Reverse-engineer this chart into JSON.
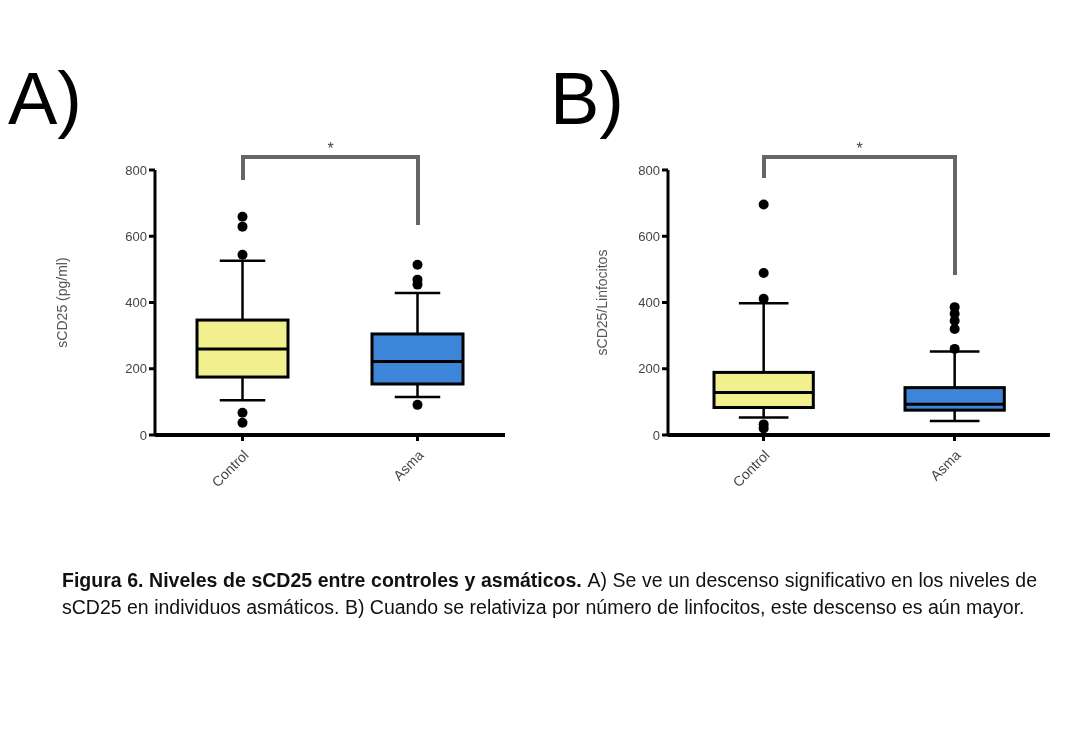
{
  "chart_data": [
    {
      "type": "box",
      "title": "A)",
      "ylabel": "sCD25 (pg/ml)",
      "categories": [
        "Control",
        "Asma"
      ],
      "colors": [
        "#f2f08e",
        "#3d85d8"
      ],
      "ylim": [
        0,
        800
      ],
      "yticks": [
        0,
        200,
        400,
        600,
        800
      ],
      "annotations": [
        "*"
      ],
      "boxes": [
        {
          "low": 105,
          "q1": 175,
          "median": 260,
          "q3": 347,
          "high": 526,
          "outliers": [
            659,
            629,
            544,
            67,
            37
          ]
        },
        {
          "low": 115,
          "q1": 154,
          "median": 222,
          "q3": 305,
          "high": 429,
          "outliers": [
            514,
            469,
            454,
            91
          ]
        }
      ]
    },
    {
      "type": "box",
      "title": "B)",
      "ylabel": "sCD25/Linfocitos",
      "categories": [
        "Control",
        "Asma"
      ],
      "colors": [
        "#f2f08e",
        "#3d85d8"
      ],
      "ylim": [
        0,
        800
      ],
      "yticks": [
        0,
        200,
        400,
        600,
        800
      ],
      "annotations": [
        "*",
        "Figura 6. Niveles de sCD25 entre controles y asmáticos.",
        "A) Se ve un descenso significativo en los niveles de sCD25 en individuos asmáticos. B) Cuando se relativiza por número de linfocitos, este descenso es aún mayor."
      ],
      "boxes": [
        {
          "low": 53,
          "q1": 83,
          "median": 128,
          "q3": 189,
          "high": 398,
          "outliers": [
            696,
            489,
            411,
            32,
            20
          ]
        },
        {
          "low": 42,
          "q1": 75,
          "median": 93,
          "q3": 143,
          "high": 252,
          "outliers": [
            386,
            366,
            345,
            320,
            260
          ]
        }
      ]
    }
  ]
}
